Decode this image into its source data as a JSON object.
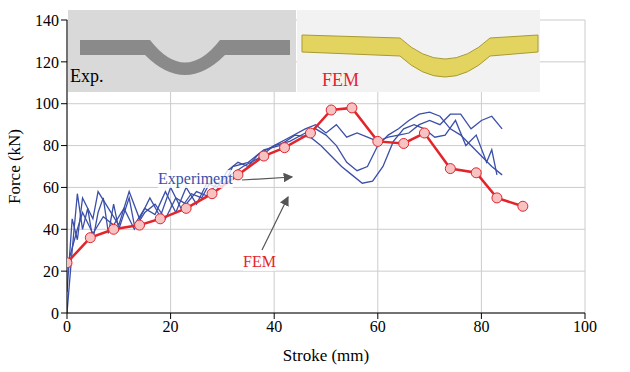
{
  "chart_data": {
    "type": "line",
    "x_label": "Stroke (mm)",
    "y_label": "Force (kN)",
    "xlim": [
      0,
      100
    ],
    "xticks": [
      0,
      20,
      40,
      60,
      80,
      100
    ],
    "ylim": [
      0,
      140
    ],
    "yticks": [
      0,
      20,
      40,
      60,
      80,
      100,
      120,
      140
    ],
    "grid": true,
    "insets": [
      "Exp.",
      "FEM"
    ],
    "series": [
      {
        "name": "Experiment",
        "color": "#3b4fa8",
        "marker": "none",
        "line_style": "solid",
        "x": [
          0,
          1,
          2,
          3,
          4,
          5,
          6,
          7,
          8,
          9,
          10,
          12,
          13,
          15,
          17,
          19,
          21,
          23,
          25,
          27,
          29,
          31,
          33,
          35,
          37,
          40,
          43,
          46,
          48,
          50,
          52,
          54,
          56,
          58,
          60,
          62,
          64,
          66,
          68,
          70,
          72,
          74,
          76,
          78,
          80,
          82,
          84
        ],
        "values": [
          0,
          30,
          57,
          40,
          50,
          35,
          48,
          55,
          38,
          52,
          40,
          55,
          42,
          50,
          47,
          58,
          48,
          60,
          52,
          62,
          60,
          68,
          72,
          70,
          76,
          80,
          82,
          86,
          88,
          85,
          80,
          72,
          68,
          70,
          80,
          85,
          88,
          92,
          95,
          96,
          94,
          88,
          85,
          80,
          75,
          70,
          66
        ]
      },
      {
        "name": "Experiment",
        "color": "#3b4fa8",
        "marker": "none",
        "line_style": "solid",
        "x": [
          0,
          1,
          2,
          3,
          5,
          6,
          8,
          10,
          12,
          14,
          16,
          18,
          20,
          22,
          24,
          26,
          28,
          30,
          32,
          35,
          38,
          41,
          44,
          47,
          49,
          51,
          53,
          55,
          57,
          59,
          61,
          63,
          65,
          67,
          69,
          71,
          73,
          75,
          77,
          79,
          81,
          82,
          83
        ],
        "values": [
          10,
          45,
          35,
          55,
          45,
          58,
          50,
          42,
          58,
          45,
          55,
          46,
          60,
          50,
          57,
          55,
          64,
          60,
          70,
          72,
          78,
          80,
          85,
          84,
          80,
          75,
          70,
          66,
          62,
          63,
          70,
          82,
          88,
          90,
          88,
          84,
          85,
          92,
          80,
          85,
          72,
          78,
          66
        ]
      },
      {
        "name": "Experiment",
        "color": "#3b4fa8",
        "marker": "none",
        "line_style": "solid",
        "x": [
          0,
          2,
          3,
          5,
          7,
          9,
          11,
          13,
          15,
          17,
          19,
          21,
          23,
          25,
          27,
          29,
          31,
          34,
          37,
          40,
          43,
          46,
          48,
          50,
          52,
          54,
          56,
          58,
          60,
          62,
          64,
          66,
          68,
          70,
          72,
          74,
          76,
          78,
          80,
          82,
          84
        ],
        "values": [
          22,
          40,
          48,
          38,
          46,
          42,
          50,
          40,
          48,
          52,
          45,
          55,
          52,
          58,
          56,
          62,
          65,
          70,
          74,
          80,
          84,
          88,
          90,
          86,
          90,
          84,
          86,
          84,
          82,
          84,
          85,
          86,
          90,
          92,
          90,
          95,
          95,
          88,
          92,
          94,
          88
        ]
      },
      {
        "name": "FEM",
        "color": "#e3242b",
        "marker": "circle",
        "line_style": "solid",
        "x": [
          0,
          4.5,
          9,
          14,
          18,
          23,
          28,
          33,
          38,
          42,
          47,
          51,
          55,
          60,
          65,
          69,
          74,
          79,
          83,
          88
        ],
        "values": [
          24,
          36,
          40,
          42,
          45,
          50,
          57,
          66,
          75,
          79,
          86,
          97,
          98,
          82,
          81,
          86,
          69,
          67,
          55,
          51
        ]
      }
    ]
  }
}
